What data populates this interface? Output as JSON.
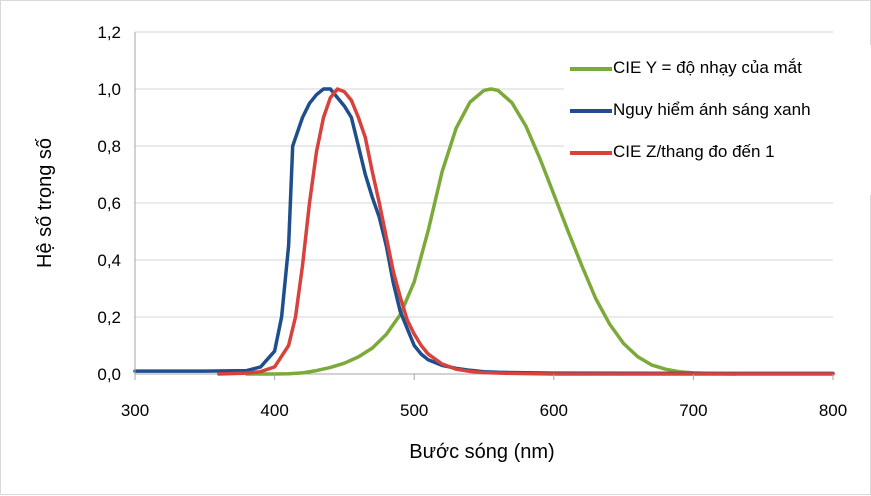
{
  "chart_data": {
    "type": "line",
    "title": "",
    "xlabel": "Bước sóng (nm)",
    "ylabel": "Hệ số trọng số",
    "xlim": [
      300,
      800
    ],
    "ylim": [
      0,
      1.2
    ],
    "x_ticks": [
      300,
      400,
      500,
      600,
      700,
      800
    ],
    "x_tick_labels": [
      "300",
      "400",
      "500",
      "600",
      "700",
      "800"
    ],
    "y_ticks": [
      0,
      0.2,
      0.4,
      0.6,
      0.8,
      1.0,
      1.2
    ],
    "y_tick_labels": [
      "0,0",
      "0,2",
      "0,4",
      "0,6",
      "0,8",
      "1,0",
      "1,2"
    ],
    "grid": "horizontal",
    "legend_position": "top-right",
    "series": [
      {
        "name": "CIE Y = độ nhạy của mắt",
        "color": "#7caa3a",
        "points": [
          [
            380,
            0.0
          ],
          [
            390,
            0.0
          ],
          [
            400,
            0.0
          ],
          [
            410,
            0.001
          ],
          [
            420,
            0.004
          ],
          [
            430,
            0.012
          ],
          [
            440,
            0.023
          ],
          [
            450,
            0.038
          ],
          [
            460,
            0.06
          ],
          [
            470,
            0.091
          ],
          [
            480,
            0.139
          ],
          [
            490,
            0.208
          ],
          [
            500,
            0.323
          ],
          [
            510,
            0.503
          ],
          [
            520,
            0.71
          ],
          [
            530,
            0.862
          ],
          [
            540,
            0.954
          ],
          [
            550,
            0.995
          ],
          [
            555,
            1.0
          ],
          [
            560,
            0.995
          ],
          [
            570,
            0.952
          ],
          [
            580,
            0.87
          ],
          [
            590,
            0.757
          ],
          [
            600,
            0.631
          ],
          [
            610,
            0.503
          ],
          [
            620,
            0.381
          ],
          [
            630,
            0.265
          ],
          [
            640,
            0.175
          ],
          [
            650,
            0.107
          ],
          [
            660,
            0.061
          ],
          [
            670,
            0.032
          ],
          [
            680,
            0.017
          ],
          [
            690,
            0.008
          ],
          [
            700,
            0.004
          ],
          [
            710,
            0.002
          ],
          [
            720,
            0.001
          ],
          [
            730,
            0.0
          ]
        ]
      },
      {
        "name": "Nguy hiểm ánh sáng xanh",
        "color": "#1f4e8c",
        "points": [
          [
            300,
            0.01
          ],
          [
            350,
            0.01
          ],
          [
            380,
            0.012
          ],
          [
            390,
            0.025
          ],
          [
            400,
            0.08
          ],
          [
            405,
            0.2
          ],
          [
            410,
            0.45
          ],
          [
            413,
            0.8
          ],
          [
            420,
            0.9
          ],
          [
            425,
            0.95
          ],
          [
            430,
            0.98
          ],
          [
            435,
            1.0
          ],
          [
            440,
            1.0
          ],
          [
            445,
            0.97
          ],
          [
            450,
            0.94
          ],
          [
            455,
            0.9
          ],
          [
            460,
            0.8
          ],
          [
            465,
            0.7
          ],
          [
            470,
            0.62
          ],
          [
            475,
            0.55
          ],
          [
            480,
            0.45
          ],
          [
            485,
            0.32
          ],
          [
            490,
            0.22
          ],
          [
            495,
            0.16
          ],
          [
            500,
            0.1
          ],
          [
            505,
            0.07
          ],
          [
            510,
            0.05
          ],
          [
            520,
            0.03
          ],
          [
            530,
            0.02
          ],
          [
            540,
            0.013
          ],
          [
            550,
            0.008
          ],
          [
            560,
            0.006
          ],
          [
            600,
            0.003
          ],
          [
            700,
            0.002
          ],
          [
            800,
            0.002
          ]
        ]
      },
      {
        "name": "CIE Z/thang đo đến 1",
        "color": "#d7423c",
        "points": [
          [
            360,
            0.0
          ],
          [
            380,
            0.003
          ],
          [
            390,
            0.008
          ],
          [
            400,
            0.025
          ],
          [
            410,
            0.1
          ],
          [
            415,
            0.2
          ],
          [
            420,
            0.38
          ],
          [
            425,
            0.6
          ],
          [
            430,
            0.78
          ],
          [
            435,
            0.9
          ],
          [
            440,
            0.97
          ],
          [
            445,
            1.0
          ],
          [
            450,
            0.99
          ],
          [
            455,
            0.96
          ],
          [
            460,
            0.9
          ],
          [
            465,
            0.83
          ],
          [
            470,
            0.71
          ],
          [
            475,
            0.6
          ],
          [
            480,
            0.48
          ],
          [
            485,
            0.36
          ],
          [
            490,
            0.27
          ],
          [
            495,
            0.19
          ],
          [
            500,
            0.14
          ],
          [
            505,
            0.1
          ],
          [
            510,
            0.07
          ],
          [
            520,
            0.035
          ],
          [
            530,
            0.017
          ],
          [
            540,
            0.009
          ],
          [
            550,
            0.005
          ],
          [
            570,
            0.002
          ],
          [
            600,
            0.0
          ],
          [
            700,
            0.0
          ],
          [
            800,
            0.0
          ]
        ]
      }
    ]
  }
}
